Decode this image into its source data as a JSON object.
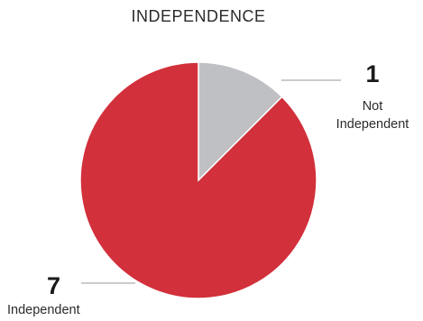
{
  "chart_data": {
    "type": "pie",
    "title": "INDEPENDENCE",
    "slices": [
      {
        "label": "Not Independent",
        "value": 1,
        "color": "#bfc0c4"
      },
      {
        "label": "Independent",
        "value": 7,
        "color": "#d2303b"
      }
    ]
  }
}
